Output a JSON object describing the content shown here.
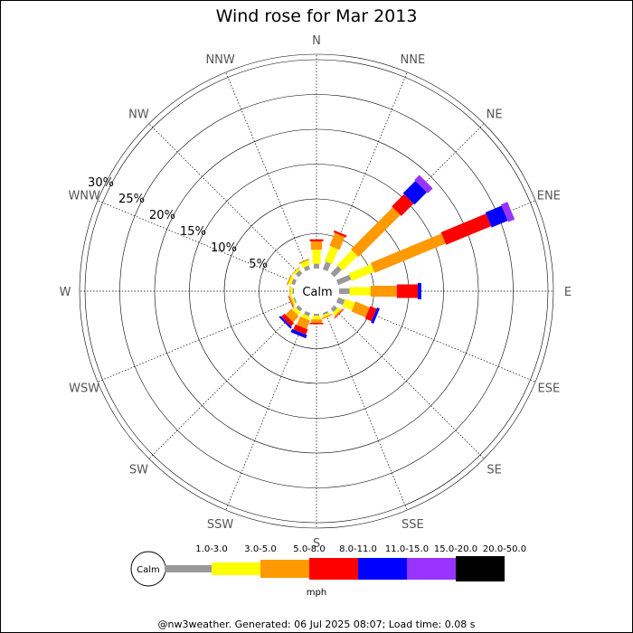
{
  "chart_data": {
    "type": "wind-rose",
    "title": "Wind rose for Mar 2013",
    "calm_label": "Calm",
    "directions": [
      "N",
      "NNE",
      "NE",
      "ENE",
      "E",
      "ESE",
      "SE",
      "SSE",
      "S",
      "SSW",
      "SW",
      "WSW",
      "W",
      "WNW",
      "NW",
      "NNW"
    ],
    "rings_percent": [
      5,
      10,
      15,
      20,
      25,
      30
    ],
    "ring_labels": [
      "5%",
      "10%",
      "15%",
      "20%",
      "25%",
      "30%"
    ],
    "speed_bins": [
      {
        "label": "1.0-3.0",
        "color": "#999999"
      },
      {
        "label": "3.0-5.0",
        "color": "#ffff00"
      },
      {
        "label": "5.0-8.0",
        "color": "#ff9900"
      },
      {
        "label": "8.0-11.0",
        "color": "#ff0000"
      },
      {
        "label": "11.0-15.0",
        "color": "#0000ff"
      },
      {
        "label": "15.0-20.0",
        "color": "#9933ff"
      },
      {
        "label": "20.0-50.0",
        "color": "#000000"
      }
    ],
    "units": "mph",
    "series": [
      {
        "direction": "N",
        "values": [
          0.7,
          2.0,
          1.2,
          0.3,
          0,
          0,
          0
        ]
      },
      {
        "direction": "NNE",
        "values": [
          1.2,
          2.3,
          2.0,
          0.3,
          0,
          0,
          0
        ]
      },
      {
        "direction": "NE",
        "values": [
          1.5,
          3.0,
          8.5,
          2.5,
          2.5,
          1.0,
          0
        ]
      },
      {
        "direction": "ENE",
        "values": [
          2.0,
          3.5,
          11.0,
          7.0,
          2.5,
          1.0,
          0
        ]
      },
      {
        "direction": "E",
        "values": [
          1.5,
          3.0,
          3.8,
          3.0,
          0.5,
          0,
          0
        ]
      },
      {
        "direction": "ESE",
        "values": [
          1.0,
          1.5,
          2.2,
          1.0,
          0.4,
          0,
          0
        ]
      },
      {
        "direction": "SE",
        "values": [
          0.6,
          0.5,
          0.2,
          0.1,
          0,
          0,
          0
        ]
      },
      {
        "direction": "SSE",
        "values": [
          0.3,
          0.3,
          0.2,
          0,
          0,
          0,
          0
        ]
      },
      {
        "direction": "S",
        "values": [
          0.3,
          0.5,
          0.5,
          0.2,
          0,
          0,
          0
        ]
      },
      {
        "direction": "SSW",
        "values": [
          0.5,
          0.5,
          1.3,
          0.8,
          0.5,
          0,
          0
        ]
      },
      {
        "direction": "SW",
        "values": [
          0.5,
          0.6,
          1.2,
          0.6,
          0.3,
          0,
          0
        ]
      },
      {
        "direction": "WSW",
        "values": [
          0.2,
          0.3,
          0.2,
          0.1,
          0,
          0,
          0
        ]
      },
      {
        "direction": "W",
        "values": [
          0.2,
          0.3,
          0.1,
          0,
          0,
          0,
          0
        ]
      },
      {
        "direction": "WNW",
        "values": [
          0.5,
          0.4,
          0.2,
          0,
          0,
          0,
          0
        ]
      },
      {
        "direction": "NW",
        "values": [
          0.6,
          0.3,
          0.1,
          0,
          0,
          0,
          0
        ]
      },
      {
        "direction": "NNW",
        "values": [
          0.6,
          0.7,
          0.2,
          0,
          0,
          0,
          0
        ]
      }
    ]
  },
  "footer": "@nw3weather. Generated: 06 Jul 2025 08:07; Load time: 0.08 s"
}
